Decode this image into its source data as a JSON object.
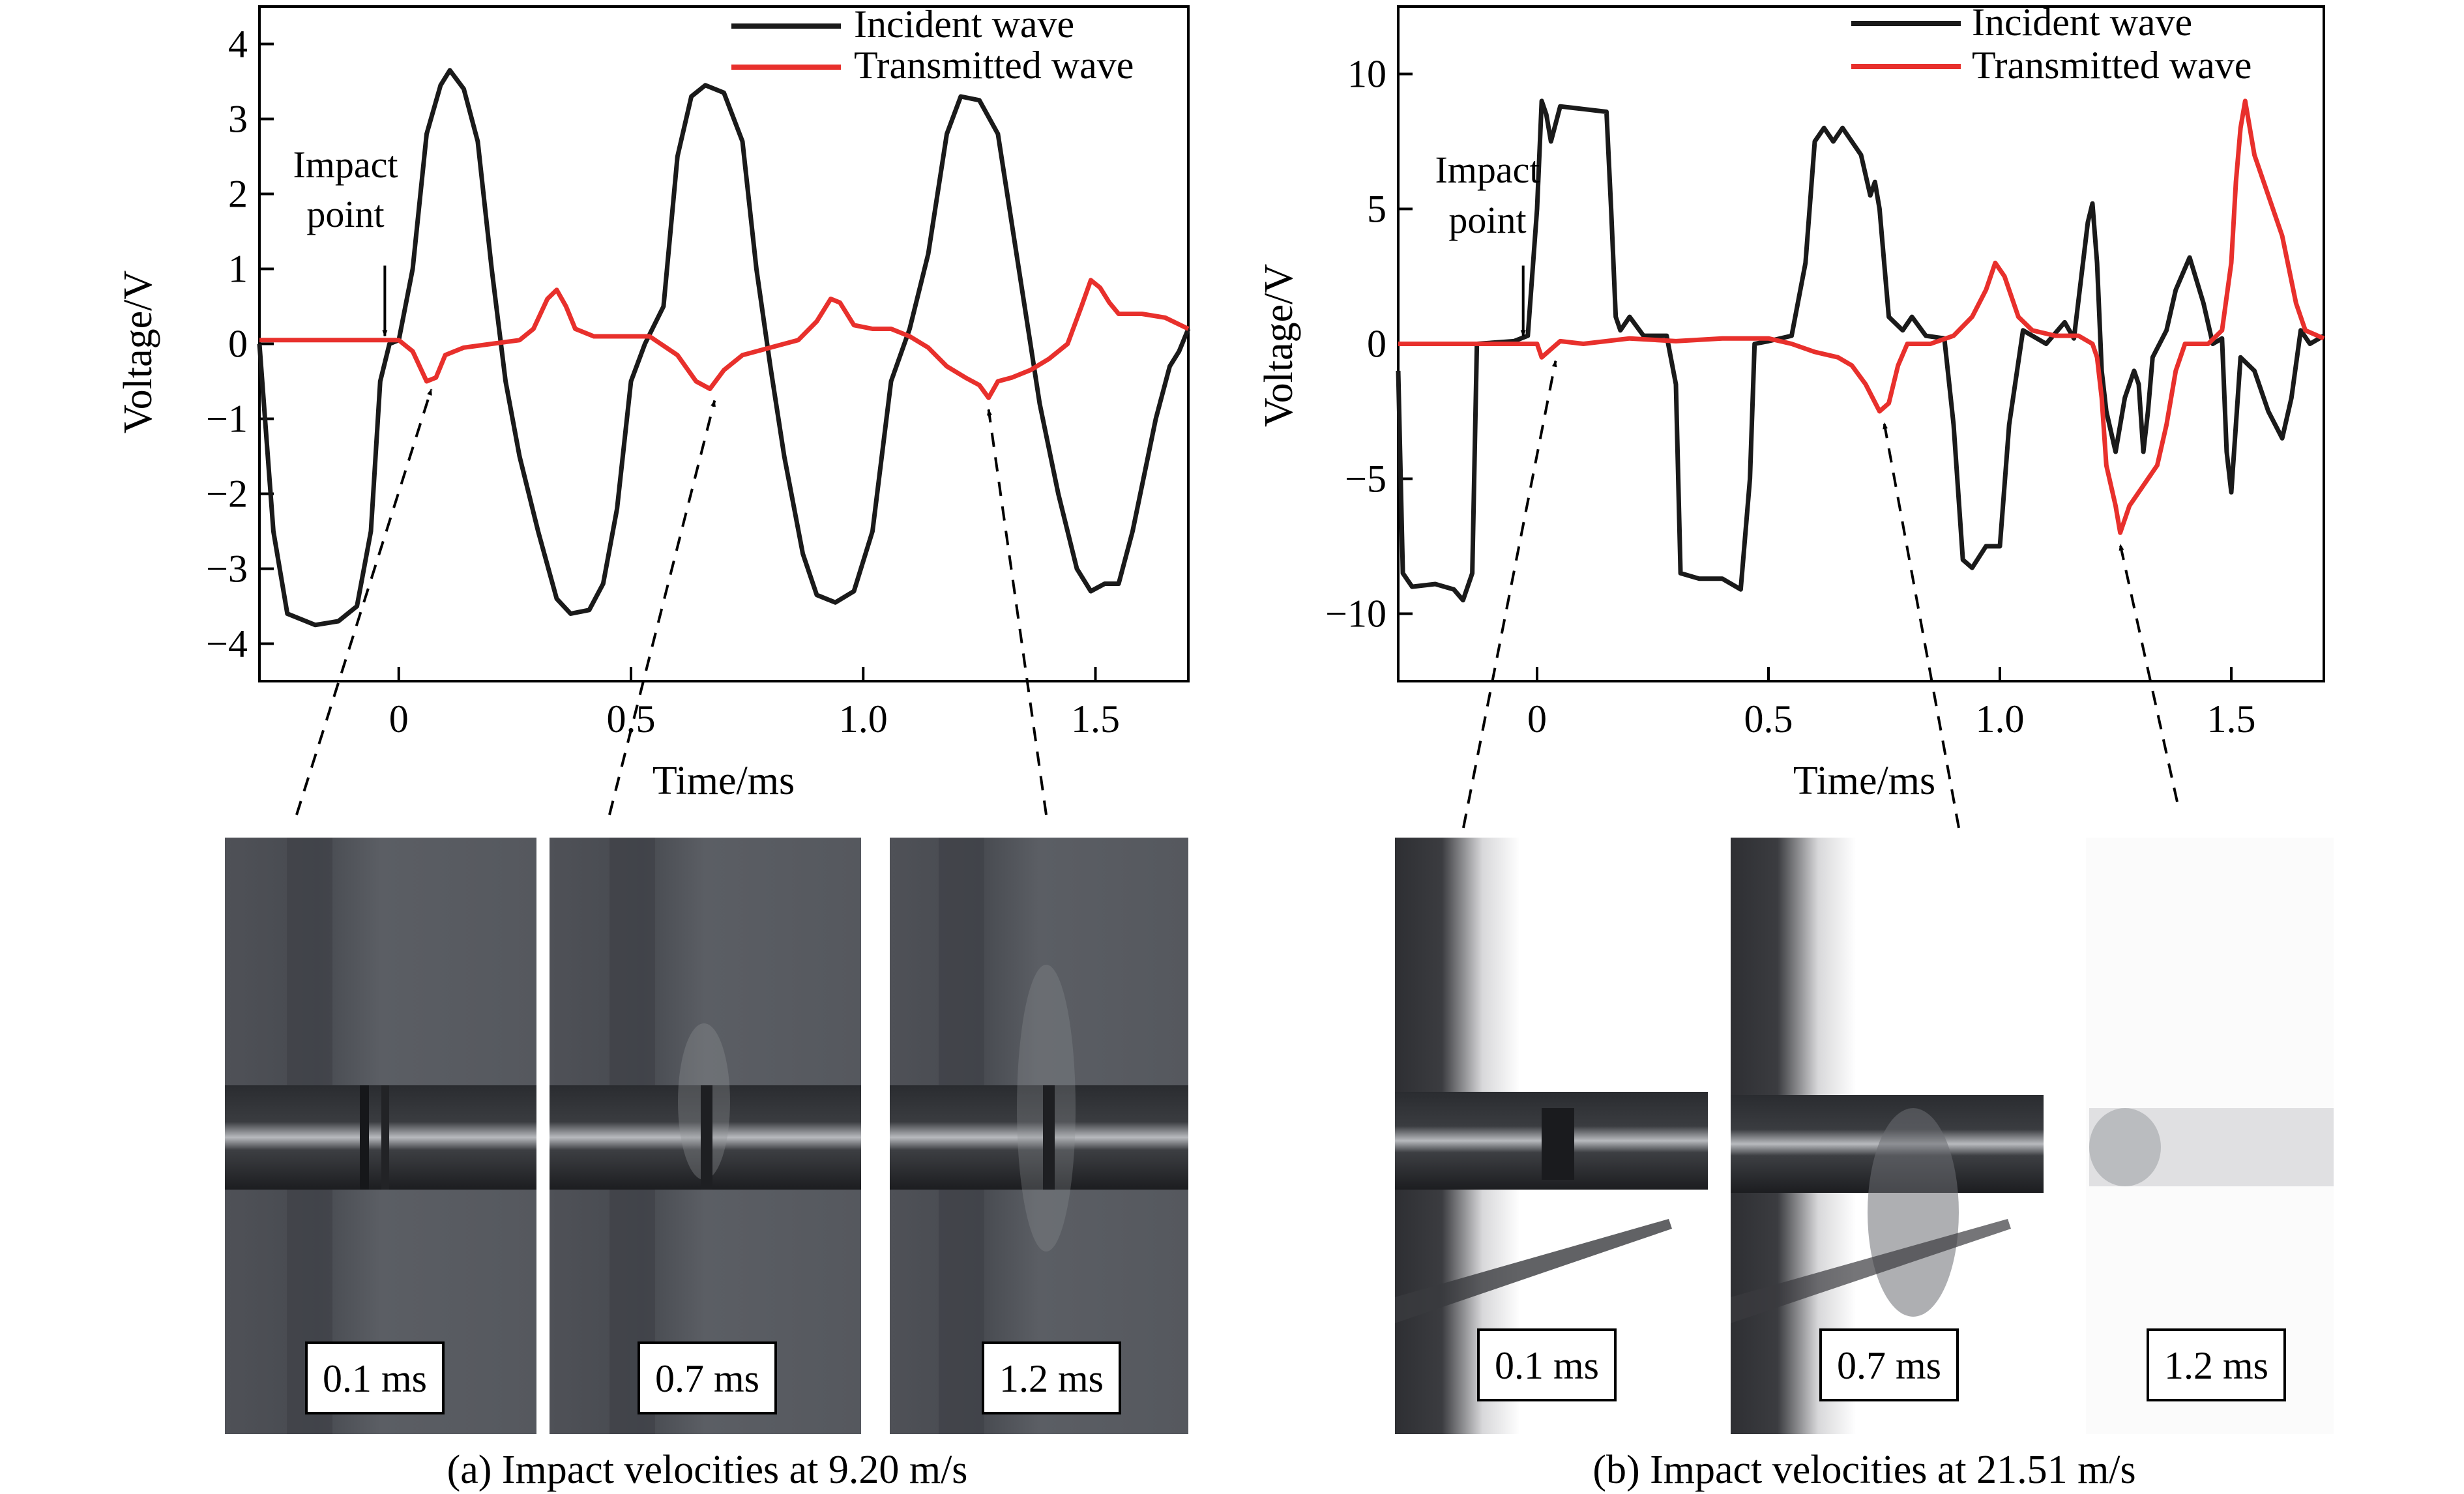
{
  "charts": [
    {
      "id": "a",
      "caption": "(a) Impact velocities at 9.20 m/s",
      "legend": [
        "Incident wave",
        "Transmitted wave"
      ],
      "annotation": [
        "Impact",
        "point"
      ],
      "frame_labels": [
        "0.1 ms",
        "0.7 ms",
        "1.2 ms"
      ]
    },
    {
      "id": "b",
      "caption": "(b) Impact velocities at 21.51 m/s",
      "legend": [
        "Incident wave",
        "Transmitted wave"
      ],
      "annotation": [
        "Impact",
        "point"
      ],
      "frame_labels": [
        "0.1 ms",
        "0.7 ms",
        "1.2 ms"
      ]
    }
  ],
  "chart_data": [
    {
      "type": "line",
      "xlabel": "Time/ms",
      "ylabel": "Voltage/V",
      "xlim": [
        -0.3,
        1.7
      ],
      "ylim": [
        -4.5,
        4.5
      ],
      "xticks": [
        0,
        0.5,
        1.0,
        1.5
      ],
      "xtick_labels": [
        "0",
        "0.5",
        "1.0",
        "1.5"
      ],
      "yticks": [
        -4,
        -3,
        -2,
        -1,
        0,
        1,
        2,
        3,
        4
      ],
      "ytick_labels": [
        "−4",
        "−3",
        "−2",
        "−1",
        "0",
        "1",
        "2",
        "3",
        "4"
      ],
      "legend_position": "top-right",
      "impact_point_x": -0.03,
      "arrow_targets_x": [
        0.07,
        0.68,
        1.27
      ],
      "series": [
        {
          "name": "Incident wave",
          "color": "#1a1a1a",
          "points": [
            [
              -0.3,
              0.0
            ],
            [
              -0.27,
              -2.5
            ],
            [
              -0.24,
              -3.6
            ],
            [
              -0.18,
              -3.75
            ],
            [
              -0.13,
              -3.7
            ],
            [
              -0.09,
              -3.5
            ],
            [
              -0.06,
              -2.5
            ],
            [
              -0.04,
              -0.5
            ],
            [
              -0.02,
              0.0
            ],
            [
              0.0,
              0.05
            ],
            [
              0.03,
              1.0
            ],
            [
              0.06,
              2.8
            ],
            [
              0.09,
              3.45
            ],
            [
              0.11,
              3.65
            ],
            [
              0.14,
              3.4
            ],
            [
              0.17,
              2.7
            ],
            [
              0.2,
              1.0
            ],
            [
              0.23,
              -0.5
            ],
            [
              0.26,
              -1.5
            ],
            [
              0.3,
              -2.5
            ],
            [
              0.34,
              -3.4
            ],
            [
              0.37,
              -3.6
            ],
            [
              0.41,
              -3.55
            ],
            [
              0.44,
              -3.2
            ],
            [
              0.47,
              -2.2
            ],
            [
              0.5,
              -0.5
            ],
            [
              0.53,
              0.0
            ],
            [
              0.57,
              0.5
            ],
            [
              0.6,
              2.5
            ],
            [
              0.63,
              3.3
            ],
            [
              0.66,
              3.45
            ],
            [
              0.7,
              3.35
            ],
            [
              0.74,
              2.7
            ],
            [
              0.77,
              1.0
            ],
            [
              0.8,
              -0.3
            ],
            [
              0.83,
              -1.5
            ],
            [
              0.87,
              -2.8
            ],
            [
              0.9,
              -3.35
            ],
            [
              0.94,
              -3.45
            ],
            [
              0.98,
              -3.3
            ],
            [
              1.02,
              -2.5
            ],
            [
              1.06,
              -0.5
            ],
            [
              1.1,
              0.2
            ],
            [
              1.14,
              1.2
            ],
            [
              1.18,
              2.8
            ],
            [
              1.21,
              3.3
            ],
            [
              1.25,
              3.25
            ],
            [
              1.29,
              2.8
            ],
            [
              1.33,
              1.2
            ],
            [
              1.36,
              0.0
            ],
            [
              1.38,
              -0.8
            ],
            [
              1.42,
              -2.0
            ],
            [
              1.46,
              -3.0
            ],
            [
              1.49,
              -3.3
            ],
            [
              1.52,
              -3.2
            ],
            [
              1.55,
              -3.2
            ],
            [
              1.58,
              -2.5
            ],
            [
              1.63,
              -1.0
            ],
            [
              1.66,
              -0.3
            ],
            [
              1.68,
              -0.1
            ],
            [
              1.7,
              0.2
            ]
          ]
        },
        {
          "name": "Transmitted wave",
          "color": "#e8302c",
          "points": [
            [
              -0.3,
              0.05
            ],
            [
              -0.1,
              0.05
            ],
            [
              0.0,
              0.05
            ],
            [
              0.03,
              -0.1
            ],
            [
              0.06,
              -0.5
            ],
            [
              0.08,
              -0.45
            ],
            [
              0.1,
              -0.15
            ],
            [
              0.14,
              -0.05
            ],
            [
              0.2,
              0.0
            ],
            [
              0.26,
              0.05
            ],
            [
              0.29,
              0.2
            ],
            [
              0.32,
              0.6
            ],
            [
              0.34,
              0.72
            ],
            [
              0.36,
              0.5
            ],
            [
              0.38,
              0.2
            ],
            [
              0.42,
              0.1
            ],
            [
              0.48,
              0.1
            ],
            [
              0.54,
              0.1
            ],
            [
              0.6,
              -0.15
            ],
            [
              0.64,
              -0.5
            ],
            [
              0.67,
              -0.6
            ],
            [
              0.7,
              -0.35
            ],
            [
              0.74,
              -0.15
            ],
            [
              0.8,
              -0.05
            ],
            [
              0.86,
              0.05
            ],
            [
              0.9,
              0.3
            ],
            [
              0.93,
              0.6
            ],
            [
              0.95,
              0.55
            ],
            [
              0.98,
              0.25
            ],
            [
              1.02,
              0.2
            ],
            [
              1.06,
              0.2
            ],
            [
              1.1,
              0.1
            ],
            [
              1.14,
              -0.05
            ],
            [
              1.18,
              -0.3
            ],
            [
              1.22,
              -0.45
            ],
            [
              1.25,
              -0.55
            ],
            [
              1.27,
              -0.72
            ],
            [
              1.29,
              -0.5
            ],
            [
              1.32,
              -0.45
            ],
            [
              1.36,
              -0.35
            ],
            [
              1.4,
              -0.2
            ],
            [
              1.44,
              0.0
            ],
            [
              1.47,
              0.5
            ],
            [
              1.49,
              0.85
            ],
            [
              1.51,
              0.75
            ],
            [
              1.53,
              0.55
            ],
            [
              1.55,
              0.4
            ],
            [
              1.6,
              0.4
            ],
            [
              1.65,
              0.35
            ],
            [
              1.7,
              0.2
            ]
          ]
        }
      ]
    },
    {
      "type": "line",
      "xlabel": "Time/ms",
      "ylabel": "Voltage/V",
      "xlim": [
        -0.3,
        1.7
      ],
      "ylim": [
        -12.5,
        12.5
      ],
      "xticks": [
        0,
        0.5,
        1.0,
        1.5
      ],
      "xtick_labels": [
        "0",
        "0.5",
        "1.0",
        "1.5"
      ],
      "yticks": [
        -10,
        -5,
        0,
        5,
        10
      ],
      "ytick_labels": [
        "−10",
        "−5",
        "0",
        "5",
        "10"
      ],
      "legend_position": "top-right",
      "impact_point_x": -0.03,
      "arrow_targets_x": [
        0.04,
        0.75,
        1.26
      ],
      "series": [
        {
          "name": "Incident wave",
          "color": "#1a1a1a",
          "points": [
            [
              -0.3,
              -1.0
            ],
            [
              -0.29,
              -8.5
            ],
            [
              -0.27,
              -9.0
            ],
            [
              -0.22,
              -8.9
            ],
            [
              -0.18,
              -9.1
            ],
            [
              -0.16,
              -9.5
            ],
            [
              -0.14,
              -8.5
            ],
            [
              -0.13,
              0.0
            ],
            [
              -0.05,
              0.1
            ],
            [
              -0.02,
              0.3
            ],
            [
              0.0,
              5.0
            ],
            [
              0.01,
              9.0
            ],
            [
              0.02,
              8.5
            ],
            [
              0.03,
              7.5
            ],
            [
              0.05,
              8.8
            ],
            [
              0.1,
              8.7
            ],
            [
              0.15,
              8.6
            ],
            [
              0.16,
              5.0
            ],
            [
              0.17,
              1.0
            ],
            [
              0.18,
              0.5
            ],
            [
              0.2,
              1.0
            ],
            [
              0.23,
              0.3
            ],
            [
              0.28,
              0.3
            ],
            [
              0.3,
              -1.5
            ],
            [
              0.31,
              -8.5
            ],
            [
              0.35,
              -8.7
            ],
            [
              0.4,
              -8.7
            ],
            [
              0.44,
              -9.1
            ],
            [
              0.46,
              -5.0
            ],
            [
              0.47,
              0.0
            ],
            [
              0.5,
              0.1
            ],
            [
              0.55,
              0.3
            ],
            [
              0.58,
              3.0
            ],
            [
              0.6,
              7.5
            ],
            [
              0.62,
              8.0
            ],
            [
              0.64,
              7.5
            ],
            [
              0.66,
              8.0
            ],
            [
              0.7,
              7.0
            ],
            [
              0.72,
              5.5
            ],
            [
              0.73,
              6.0
            ],
            [
              0.74,
              5.0
            ],
            [
              0.76,
              1.0
            ],
            [
              0.79,
              0.5
            ],
            [
              0.81,
              1.0
            ],
            [
              0.84,
              0.3
            ],
            [
              0.88,
              0.2
            ],
            [
              0.9,
              -3.0
            ],
            [
              0.92,
              -8.0
            ],
            [
              0.94,
              -8.3
            ],
            [
              0.97,
              -7.5
            ],
            [
              1.0,
              -7.5
            ],
            [
              1.02,
              -3.0
            ],
            [
              1.05,
              0.5
            ],
            [
              1.1,
              0.0
            ],
            [
              1.14,
              0.8
            ],
            [
              1.16,
              0.2
            ],
            [
              1.19,
              4.5
            ],
            [
              1.2,
              5.2
            ],
            [
              1.21,
              3.0
            ],
            [
              1.22,
              -1.0
            ],
            [
              1.23,
              -2.5
            ],
            [
              1.25,
              -4.0
            ],
            [
              1.27,
              -2.0
            ],
            [
              1.29,
              -1.0
            ],
            [
              1.3,
              -1.5
            ],
            [
              1.31,
              -4.0
            ],
            [
              1.32,
              -2.5
            ],
            [
              1.33,
              -0.5
            ],
            [
              1.36,
              0.5
            ],
            [
              1.38,
              2.0
            ],
            [
              1.41,
              3.2
            ],
            [
              1.44,
              1.5
            ],
            [
              1.46,
              0.0
            ],
            [
              1.48,
              0.2
            ],
            [
              1.49,
              -4.0
            ],
            [
              1.5,
              -5.5
            ],
            [
              1.51,
              -3.0
            ],
            [
              1.52,
              -0.5
            ],
            [
              1.55,
              -1.0
            ],
            [
              1.58,
              -2.5
            ],
            [
              1.61,
              -3.5
            ],
            [
              1.63,
              -2.0
            ],
            [
              1.65,
              0.5
            ],
            [
              1.67,
              0.0
            ],
            [
              1.7,
              0.3
            ]
          ]
        },
        {
          "name": "Transmitted wave",
          "color": "#e8302c",
          "points": [
            [
              -0.3,
              0.0
            ],
            [
              -0.1,
              0.0
            ],
            [
              0.0,
              0.0
            ],
            [
              0.01,
              -0.5
            ],
            [
              0.03,
              -0.2
            ],
            [
              0.05,
              0.1
            ],
            [
              0.1,
              0.0
            ],
            [
              0.2,
              0.2
            ],
            [
              0.3,
              0.1
            ],
            [
              0.4,
              0.2
            ],
            [
              0.5,
              0.2
            ],
            [
              0.55,
              0.0
            ],
            [
              0.6,
              -0.3
            ],
            [
              0.65,
              -0.5
            ],
            [
              0.68,
              -0.8
            ],
            [
              0.71,
              -1.5
            ],
            [
              0.74,
              -2.5
            ],
            [
              0.76,
              -2.2
            ],
            [
              0.78,
              -0.8
            ],
            [
              0.8,
              0.0
            ],
            [
              0.85,
              0.0
            ],
            [
              0.9,
              0.3
            ],
            [
              0.94,
              1.0
            ],
            [
              0.97,
              2.0
            ],
            [
              0.99,
              3.0
            ],
            [
              1.01,
              2.5
            ],
            [
              1.04,
              1.0
            ],
            [
              1.07,
              0.5
            ],
            [
              1.12,
              0.3
            ],
            [
              1.17,
              0.3
            ],
            [
              1.2,
              0.0
            ],
            [
              1.21,
              -0.5
            ],
            [
              1.22,
              -2.0
            ],
            [
              1.23,
              -4.5
            ],
            [
              1.25,
              -6.0
            ],
            [
              1.26,
              -7.0
            ],
            [
              1.28,
              -6.0
            ],
            [
              1.3,
              -5.5
            ],
            [
              1.32,
              -5.0
            ],
            [
              1.34,
              -4.5
            ],
            [
              1.36,
              -3.0
            ],
            [
              1.38,
              -1.0
            ],
            [
              1.4,
              0.0
            ],
            [
              1.45,
              0.0
            ],
            [
              1.48,
              0.5
            ],
            [
              1.5,
              3.0
            ],
            [
              1.51,
              6.0
            ],
            [
              1.52,
              8.0
            ],
            [
              1.53,
              9.0
            ],
            [
              1.55,
              7.0
            ],
            [
              1.57,
              6.0
            ],
            [
              1.59,
              5.0
            ],
            [
              1.61,
              4.0
            ],
            [
              1.64,
              1.5
            ],
            [
              1.66,
              0.5
            ],
            [
              1.7,
              0.2
            ]
          ]
        }
      ]
    }
  ]
}
